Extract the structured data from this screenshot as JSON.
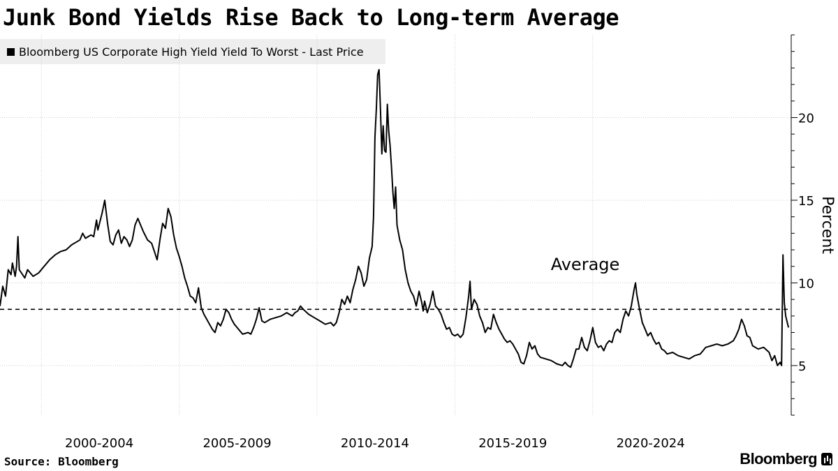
{
  "header": {
    "title": "Junk Bond Yields Rise Back to Long-term Average"
  },
  "legend": {
    "label": "Bloomberg US Corporate High Yield Yield To Worst - Last Price",
    "color": "#000000"
  },
  "footer": {
    "source": "Source: Bloomberg",
    "brand": "Bloomberg",
    "brand_icon": "bloomberg-terminal-icon"
  },
  "chart_data": {
    "type": "line",
    "title": "Junk Bond Yields Rise Back to Long-term Average",
    "ylabel": "Percent",
    "ylim": [
      2,
      25
    ],
    "xlim": [
      1997.0,
      2025.7
    ],
    "yticks": [
      5,
      10,
      15,
      20
    ],
    "ytick_labels": [
      "5",
      "10",
      "15",
      "20"
    ],
    "xgrid": [
      1998.5,
      2003.5,
      2008.5,
      2013.5,
      2018.5
    ],
    "xticks": [
      {
        "label": "2000-2004",
        "center": 2000.6
      },
      {
        "label": "2005-2009",
        "center": 2005.6
      },
      {
        "label": "2010-2014",
        "center": 2010.6
      },
      {
        "label": "2015-2019",
        "center": 2015.6
      },
      {
        "label": "2020-2024",
        "center": 2020.6
      }
    ],
    "average": {
      "label": "Average",
      "value": 8.4
    },
    "grid": true,
    "series": [
      {
        "values": [
          [
            1997.0,
            8.6
          ],
          [
            1997.1,
            9.8
          ],
          [
            1997.2,
            9.2
          ],
          [
            1997.3,
            10.8
          ],
          [
            1997.4,
            10.5
          ],
          [
            1997.45,
            11.2
          ],
          [
            1997.55,
            10.4
          ],
          [
            1997.6,
            11.0
          ],
          [
            1997.65,
            12.8
          ],
          [
            1997.7,
            10.8
          ],
          [
            1997.9,
            10.3
          ],
          [
            1998.0,
            10.8
          ],
          [
            1998.2,
            10.4
          ],
          [
            1998.4,
            10.6
          ],
          [
            1998.6,
            11.0
          ],
          [
            1998.8,
            11.4
          ],
          [
            1999.0,
            11.7
          ],
          [
            1999.2,
            11.9
          ],
          [
            1999.4,
            12.0
          ],
          [
            1999.6,
            12.3
          ],
          [
            1999.8,
            12.5
          ],
          [
            1999.9,
            12.6
          ],
          [
            2000.0,
            13.0
          ],
          [
            2000.1,
            12.7
          ],
          [
            2000.2,
            12.8
          ],
          [
            2000.3,
            12.9
          ],
          [
            2000.4,
            12.8
          ],
          [
            2000.5,
            13.8
          ],
          [
            2000.55,
            13.2
          ],
          [
            2000.7,
            14.2
          ],
          [
            2000.8,
            15.0
          ],
          [
            2000.9,
            13.6
          ],
          [
            2001.0,
            12.5
          ],
          [
            2001.1,
            12.3
          ],
          [
            2001.2,
            12.9
          ],
          [
            2001.3,
            13.2
          ],
          [
            2001.4,
            12.4
          ],
          [
            2001.5,
            12.8
          ],
          [
            2001.6,
            12.6
          ],
          [
            2001.7,
            12.2
          ],
          [
            2001.8,
            12.6
          ],
          [
            2001.9,
            13.5
          ],
          [
            2002.0,
            13.9
          ],
          [
            2002.1,
            13.5
          ],
          [
            2002.2,
            13.1
          ],
          [
            2002.35,
            12.6
          ],
          [
            2002.5,
            12.4
          ],
          [
            2002.6,
            11.9
          ],
          [
            2002.7,
            11.4
          ],
          [
            2002.8,
            12.6
          ],
          [
            2002.9,
            13.6
          ],
          [
            2003.0,
            13.3
          ],
          [
            2003.1,
            14.5
          ],
          [
            2003.2,
            14.0
          ],
          [
            2003.3,
            12.9
          ],
          [
            2003.4,
            12.1
          ],
          [
            2003.5,
            11.6
          ],
          [
            2003.6,
            11.0
          ],
          [
            2003.7,
            10.3
          ],
          [
            2003.8,
            9.8
          ],
          [
            2003.9,
            9.2
          ],
          [
            2004.0,
            9.1
          ],
          [
            2004.1,
            8.8
          ],
          [
            2004.2,
            9.7
          ],
          [
            2004.3,
            8.5
          ],
          [
            2004.4,
            8.1
          ],
          [
            2004.5,
            7.8
          ],
          [
            2004.6,
            7.5
          ],
          [
            2004.7,
            7.2
          ],
          [
            2004.8,
            7.0
          ],
          [
            2004.9,
            7.6
          ],
          [
            2005.0,
            7.4
          ],
          [
            2005.1,
            7.8
          ],
          [
            2005.2,
            8.4
          ],
          [
            2005.3,
            8.2
          ],
          [
            2005.4,
            7.8
          ],
          [
            2005.5,
            7.5
          ],
          [
            2005.6,
            7.3
          ],
          [
            2005.7,
            7.1
          ],
          [
            2005.8,
            6.9
          ],
          [
            2006.0,
            7.0
          ],
          [
            2006.1,
            6.9
          ],
          [
            2006.2,
            7.3
          ],
          [
            2006.3,
            7.8
          ],
          [
            2006.4,
            8.5
          ],
          [
            2006.5,
            7.7
          ],
          [
            2006.6,
            7.6
          ],
          [
            2006.8,
            7.8
          ],
          [
            2007.0,
            7.9
          ],
          [
            2007.2,
            8.0
          ],
          [
            2007.4,
            8.2
          ],
          [
            2007.5,
            8.1
          ],
          [
            2007.6,
            8.0
          ],
          [
            2007.7,
            8.2
          ],
          [
            2007.8,
            8.3
          ],
          [
            2007.9,
            8.6
          ],
          [
            2008.0,
            8.4
          ],
          [
            2008.2,
            8.1
          ],
          [
            2008.4,
            7.9
          ],
          [
            2008.6,
            7.7
          ],
          [
            2008.8,
            7.5
          ],
          [
            2009.0,
            7.6
          ],
          [
            2009.1,
            7.4
          ],
          [
            2009.2,
            7.6
          ],
          [
            2009.3,
            8.2
          ],
          [
            2009.4,
            9.0
          ],
          [
            2009.5,
            8.7
          ],
          [
            2009.6,
            9.2
          ],
          [
            2009.7,
            8.8
          ],
          [
            2009.8,
            9.6
          ],
          [
            2009.9,
            10.2
          ],
          [
            2010.0,
            11.0
          ],
          [
            2010.1,
            10.6
          ],
          [
            2010.2,
            9.8
          ],
          [
            2010.3,
            10.2
          ],
          [
            2010.4,
            11.5
          ],
          [
            2010.5,
            12.2
          ],
          [
            2010.55,
            14.0
          ],
          [
            2010.6,
            18.8
          ],
          [
            2010.65,
            20.5
          ],
          [
            2010.7,
            22.6
          ],
          [
            2010.75,
            22.9
          ],
          [
            2010.8,
            20.5
          ],
          [
            2010.85,
            17.8
          ],
          [
            2010.9,
            19.5
          ],
          [
            2010.95,
            18.0
          ],
          [
            2011.0,
            17.9
          ],
          [
            2011.05,
            20.8
          ],
          [
            2011.1,
            19.2
          ],
          [
            2011.15,
            18.3
          ],
          [
            2011.2,
            17.0
          ],
          [
            2011.25,
            15.5
          ],
          [
            2011.3,
            14.5
          ],
          [
            2011.35,
            15.8
          ],
          [
            2011.4,
            13.5
          ],
          [
            2011.5,
            12.6
          ],
          [
            2011.6,
            12.0
          ],
          [
            2011.7,
            10.8
          ],
          [
            2011.8,
            10.0
          ],
          [
            2011.9,
            9.5
          ],
          [
            2012.0,
            9.2
          ],
          [
            2012.1,
            8.6
          ],
          [
            2012.2,
            9.5
          ],
          [
            2012.3,
            8.8
          ],
          [
            2012.35,
            8.3
          ],
          [
            2012.4,
            8.9
          ],
          [
            2012.5,
            8.2
          ],
          [
            2012.6,
            8.7
          ],
          [
            2012.7,
            9.5
          ],
          [
            2012.8,
            8.6
          ],
          [
            2012.9,
            8.4
          ],
          [
            2013.0,
            8.1
          ],
          [
            2013.1,
            7.6
          ],
          [
            2013.2,
            7.2
          ],
          [
            2013.3,
            7.3
          ],
          [
            2013.4,
            6.9
          ],
          [
            2013.5,
            6.8
          ],
          [
            2013.6,
            6.9
          ],
          [
            2013.7,
            6.7
          ],
          [
            2013.8,
            6.9
          ],
          [
            2013.9,
            7.9
          ],
          [
            2014.0,
            9.2
          ],
          [
            2014.05,
            10.1
          ],
          [
            2014.1,
            8.4
          ],
          [
            2014.2,
            9.0
          ],
          [
            2014.3,
            8.7
          ],
          [
            2014.4,
            8.0
          ],
          [
            2014.5,
            7.6
          ],
          [
            2014.6,
            7.0
          ],
          [
            2014.7,
            7.3
          ],
          [
            2014.8,
            7.2
          ],
          [
            2014.9,
            8.1
          ],
          [
            2015.0,
            7.6
          ],
          [
            2015.1,
            7.2
          ],
          [
            2015.2,
            6.9
          ],
          [
            2015.3,
            6.6
          ],
          [
            2015.4,
            6.4
          ],
          [
            2015.5,
            6.5
          ],
          [
            2015.6,
            6.3
          ],
          [
            2015.7,
            6.0
          ],
          [
            2015.8,
            5.7
          ],
          [
            2015.9,
            5.2
          ],
          [
            2016.0,
            5.1
          ],
          [
            2016.1,
            5.6
          ],
          [
            2016.2,
            6.4
          ],
          [
            2016.3,
            6.0
          ],
          [
            2016.4,
            6.2
          ],
          [
            2016.5,
            5.7
          ],
          [
            2016.6,
            5.5
          ],
          [
            2016.8,
            5.4
          ],
          [
            2017.0,
            5.3
          ],
          [
            2017.2,
            5.1
          ],
          [
            2017.4,
            5.0
          ],
          [
            2017.5,
            5.2
          ],
          [
            2017.6,
            5.0
          ],
          [
            2017.7,
            4.9
          ],
          [
            2017.8,
            5.4
          ],
          [
            2017.9,
            6.0
          ],
          [
            2018.0,
            6.0
          ],
          [
            2018.1,
            6.7
          ],
          [
            2018.2,
            6.1
          ],
          [
            2018.3,
            5.9
          ],
          [
            2018.4,
            6.5
          ],
          [
            2018.5,
            7.3
          ],
          [
            2018.6,
            6.4
          ],
          [
            2018.7,
            6.1
          ],
          [
            2018.8,
            6.2
          ],
          [
            2018.9,
            5.9
          ],
          [
            2019.0,
            6.3
          ],
          [
            2019.1,
            6.5
          ],
          [
            2019.2,
            6.4
          ],
          [
            2019.3,
            7.0
          ],
          [
            2019.4,
            7.2
          ],
          [
            2019.5,
            7.0
          ],
          [
            2019.6,
            7.8
          ],
          [
            2019.7,
            8.3
          ],
          [
            2019.8,
            8.0
          ],
          [
            2019.9,
            8.6
          ],
          [
            2020.0,
            9.6
          ],
          [
            2020.05,
            10.0
          ],
          [
            2020.1,
            9.3
          ],
          [
            2020.2,
            8.4
          ],
          [
            2020.3,
            7.6
          ],
          [
            2020.4,
            7.2
          ],
          [
            2020.5,
            6.8
          ],
          [
            2020.6,
            7.0
          ],
          [
            2020.7,
            6.6
          ],
          [
            2020.8,
            6.3
          ],
          [
            2020.9,
            6.4
          ],
          [
            2021.0,
            6.0
          ],
          [
            2021.1,
            5.9
          ],
          [
            2021.2,
            5.7
          ],
          [
            2021.4,
            5.8
          ],
          [
            2021.6,
            5.6
          ],
          [
            2021.8,
            5.5
          ],
          [
            2022.0,
            5.4
          ],
          [
            2022.2,
            5.6
          ],
          [
            2022.4,
            5.7
          ],
          [
            2022.5,
            5.9
          ],
          [
            2022.6,
            6.1
          ],
          [
            2022.8,
            6.2
          ],
          [
            2023.0,
            6.3
          ],
          [
            2023.2,
            6.2
          ],
          [
            2023.4,
            6.3
          ],
          [
            2023.6,
            6.5
          ],
          [
            2023.7,
            6.8
          ],
          [
            2023.8,
            7.2
          ],
          [
            2023.9,
            7.8
          ],
          [
            2024.0,
            7.4
          ],
          [
            2024.1,
            6.8
          ],
          [
            2024.2,
            6.7
          ],
          [
            2024.3,
            6.2
          ],
          [
            2024.5,
            6.0
          ],
          [
            2024.7,
            6.1
          ],
          [
            2024.9,
            5.8
          ],
          [
            2025.0,
            5.3
          ],
          [
            2025.1,
            5.6
          ],
          [
            2025.2,
            5.0
          ],
          [
            2025.3,
            5.2
          ],
          [
            2025.35,
            5.0
          ],
          [
            2025.4,
            11.7
          ],
          [
            2025.45,
            8.8
          ],
          [
            2025.5,
            8.0
          ],
          [
            2025.6,
            7.3
          ]
        ]
      }
    ]
  }
}
